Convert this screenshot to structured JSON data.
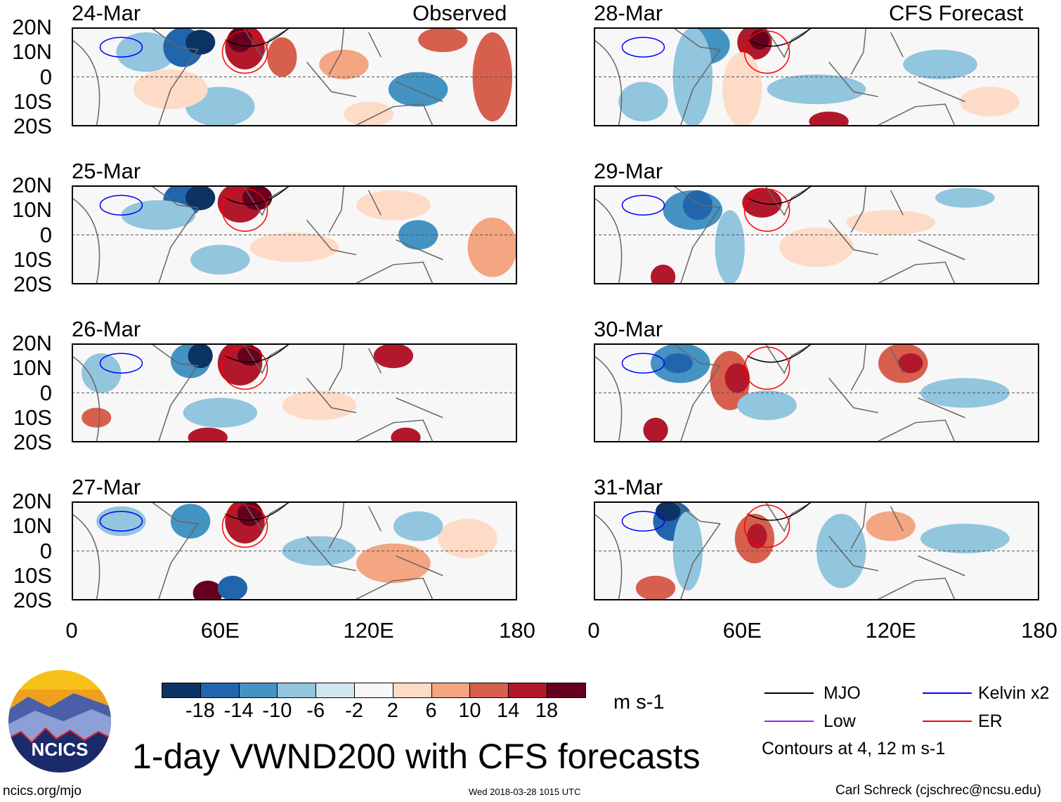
{
  "headers": {
    "observed": "Observed",
    "forecast": "CFS Forecast"
  },
  "panels_left": [
    {
      "date": "24-Mar"
    },
    {
      "date": "25-Mar"
    },
    {
      "date": "26-Mar"
    },
    {
      "date": "27-Mar"
    }
  ],
  "panels_right": [
    {
      "date": "28-Mar"
    },
    {
      "date": "29-Mar"
    },
    {
      "date": "30-Mar"
    },
    {
      "date": "31-Mar"
    }
  ],
  "lat_labels": [
    "20N",
    "10N",
    "0",
    "10S",
    "20S"
  ],
  "lon_labels": [
    "0",
    "60E",
    "120E",
    "180"
  ],
  "colorbar": {
    "colors": [
      "#0b3363",
      "#2166ac",
      "#4393c3",
      "#92c5de",
      "#d1e5f0",
      "#f7f7f7",
      "#fddbc7",
      "#f4a582",
      "#d6604d",
      "#b2182b",
      "#67001f"
    ],
    "labels": [
      "-18",
      "-14",
      "-10",
      "-6",
      "-2",
      "2",
      "6",
      "10",
      "14",
      "18"
    ],
    "units": "m s-1"
  },
  "legend": {
    "items": [
      {
        "label": "MJO",
        "color": "#000000"
      },
      {
        "label": "Kelvin x2",
        "color": "#0000ff"
      },
      {
        "label": "Low",
        "color": "#a020f0"
      },
      {
        "label": "ER",
        "color": "#ff0000"
      }
    ],
    "note": "Contours at 4, 12 m s-1"
  },
  "title": "1-day VWND200 with CFS forecasts",
  "logo_text": "NCICS",
  "footer": {
    "url": "ncics.org/mjo",
    "timestamp": "Wed 2018-03-28 1015 UTC",
    "author": "Carl Schreck (cjschrec@ncsu.edu)"
  }
}
